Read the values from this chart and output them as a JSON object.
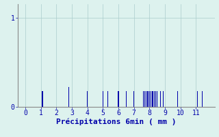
{
  "title": "",
  "xlabel": "Précipitations 6min ( mm )",
  "ylabel": "",
  "bg_color": "#ddf2ee",
  "bar_color": "#0000aa",
  "axis_color": "#888888",
  "text_color": "#0000aa",
  "xlim": [
    -0.5,
    12.2
  ],
  "ylim": [
    0,
    1.15
  ],
  "yticks": [
    0,
    1
  ],
  "xticks": [
    0,
    1,
    2,
    3,
    4,
    5,
    6,
    7,
    8,
    9,
    10,
    11
  ],
  "bar_positions": [
    1.1,
    2.8,
    4.0,
    5.0,
    5.3,
    6.0,
    6.5,
    7.0,
    7.6,
    7.7,
    7.8,
    7.9,
    8.0,
    8.1,
    8.2,
    8.3,
    8.4,
    8.5,
    8.7,
    8.9,
    9.8,
    11.1,
    11.4
  ],
  "bar_heights": [
    0.18,
    0.22,
    0.18,
    0.18,
    0.18,
    0.18,
    0.18,
    0.18,
    0.18,
    0.18,
    0.18,
    0.18,
    0.18,
    0.18,
    0.18,
    0.18,
    0.18,
    0.18,
    0.18,
    0.18,
    0.18,
    0.18,
    0.18
  ],
  "bar_width": 0.055,
  "grid_color": "#aacccc",
  "xlabel_fontsize": 8,
  "tick_fontsize": 7
}
